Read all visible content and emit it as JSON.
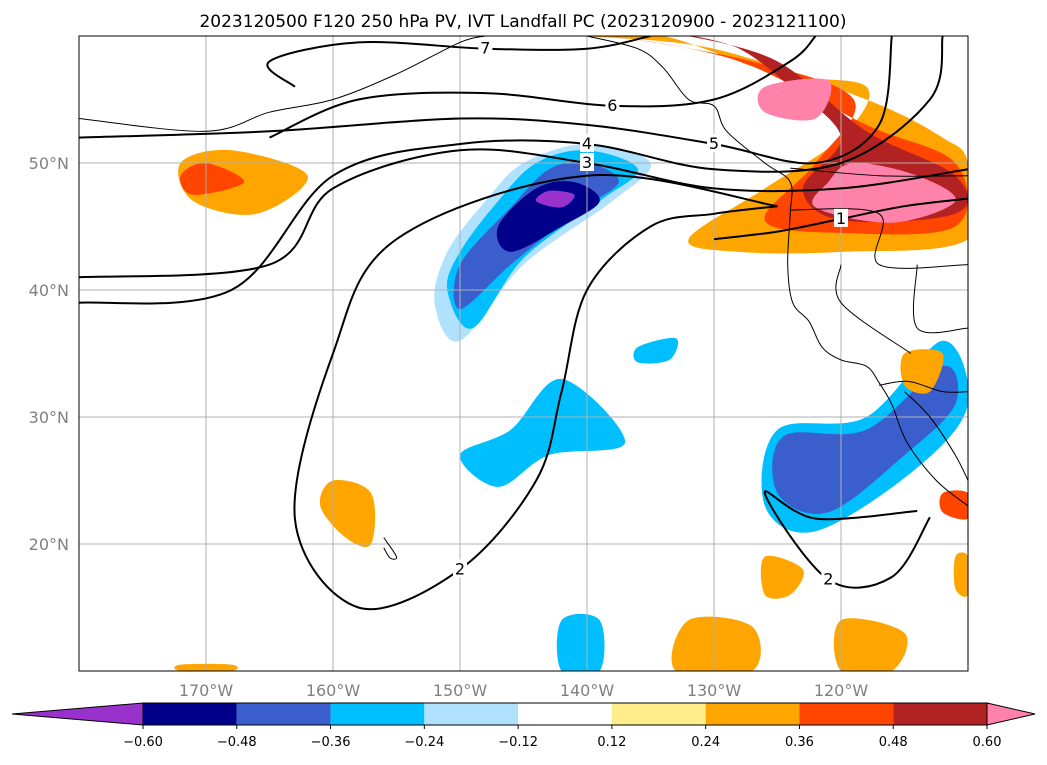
{
  "chart_data": {
    "type": "heatmap",
    "title": "2023120500 F120 250 hPa PV, IVT Landfall PC (2023120900 - 2023121100)",
    "map": {
      "lon_range": [
        -180,
        -110
      ],
      "lat_range": [
        10,
        60
      ]
    },
    "x_ticks": [
      {
        "value": -170,
        "label": "170°W"
      },
      {
        "value": -160,
        "label": "160°W"
      },
      {
        "value": -150,
        "label": "150°W"
      },
      {
        "value": -140,
        "label": "140°W"
      },
      {
        "value": -130,
        "label": "130°W"
      },
      {
        "value": -120,
        "label": "120°W"
      }
    ],
    "y_ticks": [
      {
        "value": 20,
        "label": "20°N"
      },
      {
        "value": 30,
        "label": "30°N"
      },
      {
        "value": 40,
        "label": "40°N"
      },
      {
        "value": 50,
        "label": "50°N"
      }
    ],
    "grid": true,
    "colorbar": {
      "position": "bottom",
      "ticks": [
        {
          "value": -0.6,
          "label": "−0.60"
        },
        {
          "value": -0.48,
          "label": "−0.48"
        },
        {
          "value": -0.36,
          "label": "−0.36"
        },
        {
          "value": -0.24,
          "label": "−0.24"
        },
        {
          "value": -0.12,
          "label": "−0.12"
        },
        {
          "value": 0.12,
          "label": "0.12"
        },
        {
          "value": 0.24,
          "label": "0.24"
        },
        {
          "value": 0.36,
          "label": "0.36"
        },
        {
          "value": 0.48,
          "label": "0.48"
        },
        {
          "value": 0.6,
          "label": "0.60"
        }
      ],
      "colors": [
        "#9932cc",
        "#00008b",
        "#3a5fcd",
        "#00bfff",
        "#b0e2ff",
        "#ffffff",
        "#ffec8b",
        "#ffa500",
        "#ff4500",
        "#b22222",
        "#ff82ab"
      ]
    },
    "pv_contours": [
      {
        "value": 1,
        "label": "1",
        "points": [
          [
            -130,
            44
          ],
          [
            -125,
            44.6
          ],
          [
            -120,
            45.6
          ],
          [
            -115,
            46.6
          ],
          [
            -110,
            47.2
          ]
        ]
      },
      {
        "value": 2,
        "label": "2",
        "points": [
          [
            -125,
            46.6
          ],
          [
            -140,
            49
          ],
          [
            -155,
            44
          ],
          [
            -160,
            35
          ],
          [
            -163,
            22
          ],
          [
            -158,
            15
          ],
          [
            -150,
            18
          ],
          [
            -144,
            25
          ],
          [
            -142,
            32
          ],
          [
            -140,
            40
          ],
          [
            -135,
            45
          ],
          [
            -130,
            46
          ],
          [
            -125,
            46.6
          ]
        ]
      },
      {
        "value": 2,
        "label": "2",
        "points": [
          [
            -114,
            22.6
          ],
          [
            -122,
            22
          ],
          [
            -126,
            24
          ],
          [
            -121,
            17.2
          ],
          [
            -116,
            17.4
          ],
          [
            -113,
            22.1
          ]
        ]
      },
      {
        "value": 3,
        "label": "3",
        "points": [
          [
            -180,
            41
          ],
          [
            -165,
            42
          ],
          [
            -160,
            48
          ],
          [
            -150,
            51
          ],
          [
            -140,
            50
          ],
          [
            -130,
            48
          ],
          [
            -120,
            48
          ],
          [
            -110,
            49.5
          ]
        ]
      },
      {
        "value": 4,
        "label": "4",
        "points": [
          [
            -180,
            39
          ],
          [
            -168,
            40
          ],
          [
            -160,
            49
          ],
          [
            -150,
            51.5
          ],
          [
            -140,
            51.5
          ],
          [
            -130,
            49.5
          ],
          [
            -120,
            50
          ],
          [
            -113,
            55
          ],
          [
            -112,
            60
          ]
        ]
      },
      {
        "value": 5,
        "label": "5",
        "points": [
          [
            -180,
            52
          ],
          [
            -165,
            52.5
          ],
          [
            -150,
            53.5
          ],
          [
            -140,
            53
          ],
          [
            -130,
            51.5
          ],
          [
            -122,
            50
          ],
          [
            -117,
            53
          ],
          [
            -116,
            60
          ]
        ]
      },
      {
        "value": 6,
        "label": "6",
        "points": [
          [
            -165,
            52
          ],
          [
            -158,
            55
          ],
          [
            -148,
            55.5
          ],
          [
            -138,
            54.5
          ],
          [
            -130,
            55
          ],
          [
            -124,
            58
          ],
          [
            -122,
            60
          ]
        ]
      },
      {
        "value": 7,
        "label": "7",
        "points": [
          [
            -163,
            56
          ],
          [
            -165,
            58
          ],
          [
            -158,
            59.5
          ],
          [
            -148,
            59
          ],
          [
            -140,
            59
          ],
          [
            -135,
            60
          ]
        ]
      }
    ],
    "ivt_pc_regions": [
      {
        "level": 0.24,
        "points": [
          [
            -172,
            50
          ],
          [
            -168,
            51
          ],
          [
            -162,
            49
          ],
          [
            -166,
            46
          ],
          [
            -171,
            47
          ]
        ]
      },
      {
        "level": 0.36,
        "points": [
          [
            -172,
            49
          ],
          [
            -170,
            50
          ],
          [
            -167,
            48.5
          ],
          [
            -171,
            47.5
          ]
        ]
      },
      {
        "level": 0.24,
        "points": [
          [
            -140,
            60
          ],
          [
            -130,
            59
          ],
          [
            -118,
            55
          ],
          [
            -112,
            52
          ],
          [
            -110,
            50
          ],
          [
            -110,
            44
          ],
          [
            -120,
            43
          ],
          [
            -128,
            43
          ],
          [
            -132,
            44
          ],
          [
            -126,
            48
          ],
          [
            -120,
            52
          ],
          [
            -118,
            56
          ],
          [
            -125,
            57
          ],
          [
            -134,
            60
          ]
        ]
      },
      {
        "level": 0.36,
        "points": [
          [
            -138,
            60
          ],
          [
            -128,
            58
          ],
          [
            -118,
            53
          ],
          [
            -111,
            50
          ],
          [
            -111,
            45
          ],
          [
            -120,
            44.5
          ],
          [
            -126,
            45.5
          ],
          [
            -122,
            50
          ],
          [
            -119,
            55
          ],
          [
            -127,
            58
          ]
        ]
      },
      {
        "level": 0.48,
        "points": [
          [
            -132,
            60
          ],
          [
            -125,
            58
          ],
          [
            -118,
            52.5
          ],
          [
            -111,
            49
          ],
          [
            -111,
            46
          ],
          [
            -120,
            45.5
          ],
          [
            -123,
            48
          ],
          [
            -120,
            52
          ],
          [
            -124,
            56
          ],
          [
            -128,
            59
          ]
        ]
      },
      {
        "level": 0.6,
        "points": [
          [
            -119,
            50
          ],
          [
            -114,
            49
          ],
          [
            -111,
            47
          ],
          [
            -116,
            45.3
          ],
          [
            -122,
            46.5
          ],
          [
            -121,
            48.5
          ]
        ]
      },
      {
        "level": 0.6,
        "points": [
          [
            -126,
            56
          ],
          [
            -121,
            56.5
          ],
          [
            -122,
            53.5
          ],
          [
            -126,
            54
          ]
        ]
      },
      {
        "level": -0.12,
        "points": [
          [
            -148,
            47
          ],
          [
            -145,
            50
          ],
          [
            -140,
            51.5
          ],
          [
            -135,
            50
          ],
          [
            -138,
            47
          ],
          [
            -145,
            42
          ],
          [
            -150,
            36
          ],
          [
            -152,
            39
          ],
          [
            -151,
            43
          ]
        ]
      },
      {
        "level": -0.24,
        "points": [
          [
            -147,
            47
          ],
          [
            -144,
            50
          ],
          [
            -140,
            51
          ],
          [
            -136,
            49.5
          ],
          [
            -139,
            47
          ],
          [
            -145,
            42.5
          ],
          [
            -149,
            37
          ],
          [
            -151,
            40
          ],
          [
            -150,
            43
          ]
        ]
      },
      {
        "level": -0.36,
        "points": [
          [
            -146,
            46.5
          ],
          [
            -143,
            49.5
          ],
          [
            -140,
            50
          ],
          [
            -137.5,
            48.5
          ],
          [
            -141,
            46
          ],
          [
            -146,
            42
          ],
          [
            -150,
            38.5
          ],
          [
            -150,
            42
          ]
        ]
      },
      {
        "level": -0.48,
        "points": [
          [
            -144,
            48
          ],
          [
            -141,
            48.5
          ],
          [
            -139,
            47
          ],
          [
            -142,
            45
          ],
          [
            -146,
            43
          ],
          [
            -147,
            45
          ]
        ]
      },
      {
        "level": -0.6,
        "points": [
          [
            -143,
            47.8
          ],
          [
            -141,
            47.5
          ],
          [
            -142,
            46.5
          ],
          [
            -144,
            47
          ]
        ]
      },
      {
        "level": -0.24,
        "points": [
          [
            -146,
            29
          ],
          [
            -142,
            33
          ],
          [
            -137,
            28
          ],
          [
            -143,
            27
          ],
          [
            -147,
            24.5
          ],
          [
            -150,
            27
          ]
        ]
      },
      {
        "level": -0.24,
        "points": [
          [
            -125,
            29
          ],
          [
            -118,
            30
          ],
          [
            -112,
            36
          ],
          [
            -110,
            31
          ],
          [
            -114,
            26
          ],
          [
            -122,
            21
          ],
          [
            -126,
            23
          ]
        ]
      },
      {
        "level": -0.36,
        "points": [
          [
            -124.5,
            28.5
          ],
          [
            -118,
            29
          ],
          [
            -112,
            34
          ],
          [
            -111,
            31
          ],
          [
            -115,
            27
          ],
          [
            -121,
            22.5
          ],
          [
            -125,
            24
          ]
        ]
      },
      {
        "level": -0.24,
        "points": [
          [
            -136,
            35.5
          ],
          [
            -133,
            36.2
          ],
          [
            -133.5,
            34.5
          ],
          [
            -136,
            34.3
          ]
        ]
      },
      {
        "level": -0.24,
        "points": [
          [
            -142,
            14
          ],
          [
            -139,
            14
          ],
          [
            -139,
            10
          ],
          [
            -142,
            10
          ]
        ]
      },
      {
        "level": 0.24,
        "points": [
          [
            -160,
            25
          ],
          [
            -157,
            24
          ],
          [
            -157,
            20
          ],
          [
            -159,
            20.5
          ],
          [
            -161,
            23
          ]
        ]
      },
      {
        "level": 0.24,
        "points": [
          [
            -132,
            14
          ],
          [
            -127,
            13.5
          ],
          [
            -127,
            10
          ],
          [
            -133,
            10
          ]
        ]
      },
      {
        "level": 0.24,
        "points": [
          [
            -120,
            14
          ],
          [
            -115,
            13
          ],
          [
            -116,
            10
          ],
          [
            -120,
            10
          ]
        ]
      },
      {
        "level": 0.24,
        "points": [
          [
            -126,
            19
          ],
          [
            -123,
            18
          ],
          [
            -124,
            16
          ],
          [
            -126,
            16
          ]
        ]
      },
      {
        "level": 0.24,
        "points": [
          [
            -115,
            35
          ],
          [
            -112,
            35
          ],
          [
            -113,
            32
          ],
          [
            -115,
            32.5
          ]
        ]
      },
      {
        "level": 0.36,
        "points": [
          [
            -112,
            24
          ],
          [
            -110,
            24
          ],
          [
            -110,
            22
          ],
          [
            -112,
            22.5
          ]
        ]
      },
      {
        "level": 0.24,
        "points": [
          [
            -111,
            19
          ],
          [
            -110,
            19
          ],
          [
            -110,
            16
          ],
          [
            -111,
            16.5
          ]
        ]
      },
      {
        "level": 0.24,
        "points": [
          [
            -172,
            10.5
          ],
          [
            -168,
            10.5
          ],
          [
            -168,
            10
          ],
          [
            -172,
            10
          ]
        ]
      }
    ],
    "coastlines": [
      [
        [
          -180,
          53.5
        ],
        [
          -170,
          52.5
        ],
        [
          -165,
          54
        ],
        [
          -160,
          55
        ],
        [
          -155,
          57
        ],
        [
          -150,
          59.5
        ],
        [
          -148,
          60
        ]
      ],
      [
        [
          -140,
          60
        ],
        [
          -136,
          59
        ],
        [
          -134,
          57.5
        ],
        [
          -132,
          55
        ],
        [
          -130,
          54.5
        ],
        [
          -129,
          52.5
        ],
        [
          -126,
          50
        ],
        [
          -124,
          48.5
        ],
        [
          -124,
          46
        ],
        [
          -124.2,
          42
        ],
        [
          -123.8,
          39
        ],
        [
          -122.5,
          37.5
        ],
        [
          -121.5,
          35.5
        ],
        [
          -120,
          34.5
        ],
        [
          -118,
          34
        ],
        [
          -117,
          32.7
        ],
        [
          -116,
          31
        ],
        [
          -114.8,
          28
        ],
        [
          -112.5,
          25
        ],
        [
          -110,
          23
        ]
      ],
      [
        [
          -115,
          32
        ],
        [
          -113,
          30
        ],
        [
          -111,
          27
        ],
        [
          -110,
          25
        ]
      ],
      [
        [
          -110,
          32
        ],
        [
          -112,
          32
        ],
        [
          -114.7,
          32.8
        ],
        [
          -117,
          32.5
        ]
      ],
      [
        [
          -124,
          49.6
        ],
        [
          -117,
          49
        ],
        [
          -110,
          49
        ]
      ],
      [
        [
          -124,
          46.3
        ],
        [
          -117,
          46
        ],
        [
          -117,
          42
        ],
        [
          -110,
          42
        ]
      ],
      [
        [
          -120,
          42
        ],
        [
          -120,
          39
        ],
        [
          -114.5,
          35
        ]
      ],
      [
        [
          -114,
          42
        ],
        [
          -114,
          37
        ],
        [
          -110,
          37
        ]
      ],
      [
        [
          -156,
          20.5
        ],
        [
          -155,
          19
        ],
        [
          -155.5,
          18.9
        ],
        [
          -156,
          19.7
        ]
      ]
    ]
  }
}
